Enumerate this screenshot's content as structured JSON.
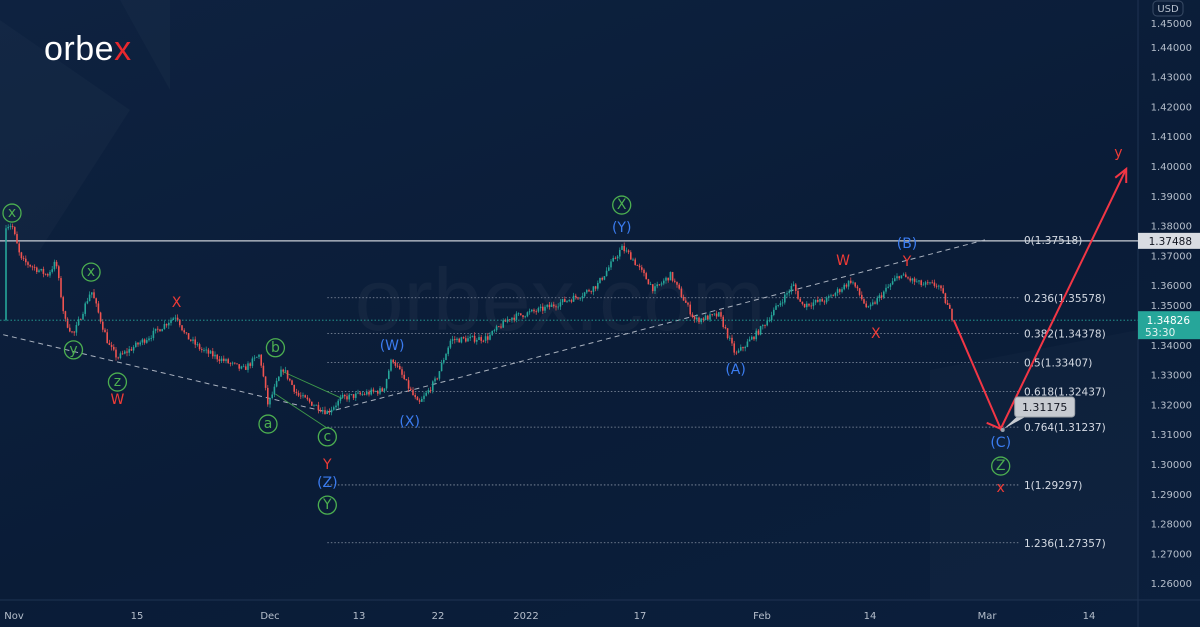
{
  "brand": {
    "logo_text": "orbex",
    "watermark": "orbex.com"
  },
  "colors": {
    "background": "#0b1d38",
    "up": "#26a69a",
    "down": "#ef5350",
    "green_label": "#4caf50",
    "blue_label": "#3b7cf0",
    "red_label": "#ef3b36",
    "projection": "#f23645",
    "last_price_badge": "#26a69a"
  },
  "chart_data": {
    "type": "candlestick",
    "currency": "USD",
    "ylim": [
      1.255,
      1.45
    ],
    "y_ticks": [
      "1.45000",
      "1.44000",
      "1.43000",
      "1.42000",
      "1.41000",
      "1.40000",
      "1.39000",
      "1.38000",
      "1.37000",
      "1.36000",
      "1.35000",
      "1.34000",
      "1.33000",
      "1.32000",
      "1.31000",
      "1.30000",
      "1.29000",
      "1.28000",
      "1.27000",
      "1.26000"
    ],
    "x_ticks": [
      {
        "label": "Nov",
        "date": "2021-11-01"
      },
      {
        "label": "15",
        "date": "2021-11-15"
      },
      {
        "label": "Dec",
        "date": "2021-12-01"
      },
      {
        "label": "13",
        "date": "2021-12-13"
      },
      {
        "label": "22",
        "date": "2021-12-22"
      },
      {
        "label": "2022",
        "date": "2022-01-03"
      },
      {
        "label": "17",
        "date": "2022-01-17"
      },
      {
        "label": "Feb",
        "date": "2022-02-01"
      },
      {
        "label": "14",
        "date": "2022-02-14"
      },
      {
        "label": "Mar",
        "date": "2022-03-01"
      },
      {
        "label": "14",
        "date": "2022-03-14"
      }
    ],
    "price_path": [
      [
        "2021-11-01",
        1.3802
      ],
      [
        "2021-11-02",
        1.3685
      ],
      [
        "2021-11-05",
        1.3634
      ],
      [
        "2021-11-06",
        1.3678
      ],
      [
        "2021-11-07",
        1.3483
      ],
      [
        "2021-11-08",
        1.3433
      ],
      [
        "2021-11-10",
        1.3584
      ],
      [
        "2021-11-12",
        1.3399
      ],
      [
        "2021-11-13",
        1.3356
      ],
      [
        "2021-11-17",
        1.3433
      ],
      [
        "2021-11-20",
        1.35
      ],
      [
        "2021-11-21",
        1.3433
      ],
      [
        "2021-11-23",
        1.3383
      ],
      [
        "2021-11-28",
        1.3316
      ],
      [
        "2021-11-30",
        1.3366
      ],
      [
        "2021-12-01",
        1.3198
      ],
      [
        "2021-12-03",
        1.3322
      ],
      [
        "2021-12-05",
        1.3231
      ],
      [
        "2021-12-09",
        1.3174
      ],
      [
        "2021-12-11",
        1.3221
      ],
      [
        "2021-12-16",
        1.3248
      ],
      [
        "2021-12-17",
        1.3356
      ],
      [
        "2021-12-20",
        1.3198
      ],
      [
        "2021-12-22",
        1.3282
      ],
      [
        "2021-12-24",
        1.3416
      ],
      [
        "2021-12-29",
        1.3423
      ],
      [
        "2022-01-01",
        1.349
      ],
      [
        "2022-01-05",
        1.3517
      ],
      [
        "2022-01-10",
        1.3567
      ],
      [
        "2022-01-12",
        1.3601
      ],
      [
        "2022-01-15",
        1.3725
      ],
      [
        "2022-01-16",
        1.3701
      ],
      [
        "2022-01-19",
        1.3584
      ],
      [
        "2022-01-21",
        1.3634
      ],
      [
        "2022-01-24",
        1.3483
      ],
      [
        "2022-01-27",
        1.35
      ],
      [
        "2022-01-29",
        1.3366
      ],
      [
        "2022-02-01",
        1.345
      ],
      [
        "2022-02-05",
        1.3601
      ],
      [
        "2022-02-06",
        1.3533
      ],
      [
        "2022-02-09",
        1.355
      ],
      [
        "2022-02-12",
        1.3617
      ],
      [
        "2022-02-14",
        1.3517
      ],
      [
        "2022-02-18",
        1.3634
      ],
      [
        "2022-02-21",
        1.3601
      ],
      [
        "2022-02-23",
        1.3601
      ],
      [
        "2022-02-25",
        1.34826
      ]
    ],
    "last_price": {
      "value": "1.34826",
      "countdown": "53:30"
    },
    "horizontal_level": {
      "value": 1.37488,
      "label": "1.37488"
    },
    "fibonacci": [
      {
        "label": "0(1.37518)",
        "price": 1.37518
      },
      {
        "label": "0.236(1.35578)",
        "price": 1.35578
      },
      {
        "label": "0.382(1.34378)",
        "price": 1.34378
      },
      {
        "label": "0.5(1.33407)",
        "price": 1.33407
      },
      {
        "label": "0.618(1.32437)",
        "price": 1.32437
      },
      {
        "label": "0.764(1.31237)",
        "price": 1.31237
      },
      {
        "label": "1(1.29297)",
        "price": 1.29297
      },
      {
        "label": "1.236(1.27357)",
        "price": 1.27357
      }
    ],
    "projection": [
      [
        "2022-02-25",
        1.34826
      ],
      [
        "2022-03-03",
        1.3118
      ],
      [
        "2022-03-19",
        1.399
      ]
    ],
    "target_tooltip": {
      "label": "1.31175",
      "price": 1.31175,
      "date": "2022-03-03"
    },
    "trendlines": [
      {
        "style": "dashed",
        "points": [
          [
            "2021-10-30",
            1.3441
          ],
          [
            "2021-12-09",
            1.3174
          ]
        ]
      },
      {
        "style": "dashed",
        "points": [
          [
            "2021-12-09",
            1.3174
          ],
          [
            "2022-03-01",
            1.3752
          ]
        ]
      },
      {
        "style": "solid-green",
        "points": [
          [
            "2021-12-02",
            1.3235
          ],
          [
            "2021-12-09",
            1.312
          ]
        ]
      },
      {
        "style": "solid-green",
        "points": [
          [
            "2021-12-03",
            1.331
          ],
          [
            "2021-12-11",
            1.322
          ]
        ]
      }
    ],
    "wave_labels": [
      {
        "text": "x",
        "style": "green-circle",
        "date": "2021-11-01",
        "price": 1.3842
      },
      {
        "text": "x",
        "style": "green-circle",
        "date": "2021-11-10",
        "price": 1.3644
      },
      {
        "text": "y",
        "style": "green-circle",
        "date": "2021-11-08",
        "price": 1.3383
      },
      {
        "text": "z",
        "style": "green-circle",
        "date": "2021-11-13",
        "price": 1.3275
      },
      {
        "text": "W",
        "style": "red",
        "date": "2021-11-13",
        "price": 1.3215
      },
      {
        "text": "X",
        "style": "red",
        "date": "2021-11-20",
        "price": 1.354
      },
      {
        "text": "b",
        "style": "green-circle",
        "date": "2021-12-02",
        "price": 1.339
      },
      {
        "text": "a",
        "style": "green-circle",
        "date": "2021-12-01",
        "price": 1.3134
      },
      {
        "text": "c",
        "style": "green-circle",
        "date": "2021-12-09",
        "price": 1.3091
      },
      {
        "text": "Y",
        "style": "red",
        "date": "2021-12-09",
        "price": 1.2997
      },
      {
        "text": "(Z)",
        "style": "blue",
        "date": "2021-12-09",
        "price": 1.2936
      },
      {
        "text": "Y",
        "style": "green-circle",
        "date": "2021-12-09",
        "price": 1.2862
      },
      {
        "text": "(W)",
        "style": "blue",
        "date": "2021-12-17",
        "price": 1.3396
      },
      {
        "text": "(X)",
        "style": "blue",
        "date": "2021-12-19",
        "price": 1.3141
      },
      {
        "text": "X",
        "style": "green-circle",
        "date": "2022-01-15",
        "price": 1.3869
      },
      {
        "text": "(Y)",
        "style": "blue",
        "date": "2022-01-15",
        "price": 1.3792
      },
      {
        "text": "(A)",
        "style": "blue",
        "date": "2022-01-29",
        "price": 1.3315
      },
      {
        "text": "W",
        "style": "red",
        "date": "2022-02-11",
        "price": 1.3681
      },
      {
        "text": "(B)",
        "style": "blue",
        "date": "2022-02-19",
        "price": 1.3738
      },
      {
        "text": "Y",
        "style": "red",
        "date": "2022-02-19",
        "price": 1.3678
      },
      {
        "text": "X",
        "style": "red",
        "date": "2022-02-15",
        "price": 1.3436
      },
      {
        "text": "(C)",
        "style": "blue",
        "date": "2022-03-03",
        "price": 1.307
      },
      {
        "text": "Z",
        "style": "green-circle",
        "date": "2022-03-03",
        "price": 1.2993
      },
      {
        "text": "x",
        "style": "red",
        "date": "2022-03-03",
        "price": 1.292
      },
      {
        "text": "y",
        "style": "red",
        "date": "2022-03-18",
        "price": 1.4044
      }
    ],
    "grid": false,
    "legend": "none"
  }
}
